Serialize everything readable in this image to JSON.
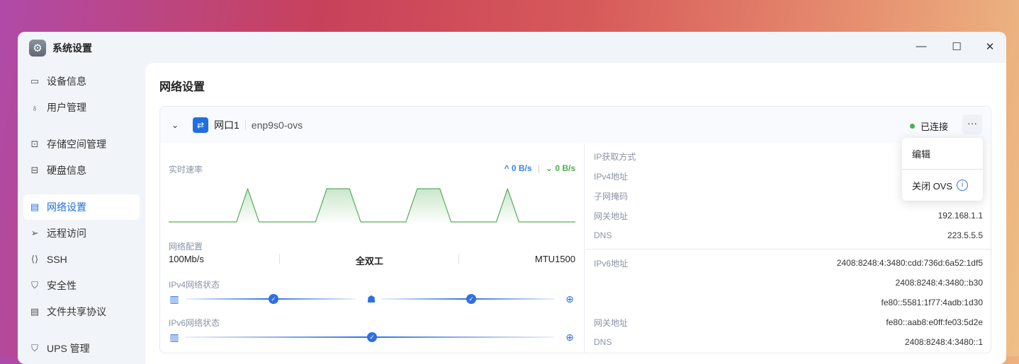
{
  "window": {
    "title": "系统设置",
    "controls": [
      "minimize",
      "maximize",
      "close"
    ]
  },
  "sidebar": {
    "items": [
      {
        "label": "设备信息",
        "icon": "device-icon"
      },
      {
        "label": "用户管理",
        "icon": "user-gear-icon"
      },
      {
        "label": "存储空间管理",
        "icon": "storage-icon"
      },
      {
        "label": "硬盘信息",
        "icon": "disk-icon"
      },
      {
        "label": "网络设置",
        "icon": "network-icon",
        "active": true
      },
      {
        "label": "远程访问",
        "icon": "send-icon"
      },
      {
        "label": "SSH",
        "icon": "code-icon"
      },
      {
        "label": "安全性",
        "icon": "shield-check-icon"
      },
      {
        "label": "文件共享协议",
        "icon": "file-icon"
      },
      {
        "label": "UPS 管理",
        "icon": "shield-icon"
      }
    ]
  },
  "main": {
    "title": "网络设置",
    "port": {
      "name": "网口1",
      "device": "enp9s0-ovs",
      "status": "已连接",
      "status_color": "#4caf50",
      "speed_label": "实时速率",
      "upload": "0 B/s",
      "download": "0 B/s",
      "traffic": [
        0,
        0,
        0,
        0,
        0,
        0,
        0,
        1,
        0,
        0,
        0,
        0,
        0,
        0,
        1,
        1,
        1,
        0,
        0,
        0,
        0,
        0,
        1,
        1,
        1,
        0,
        0,
        0,
        0,
        0,
        1,
        0,
        0,
        0,
        0,
        0,
        0
      ],
      "config_label": "网络配置",
      "link_speed": "100Mb/s",
      "duplex": "全双工",
      "mtu": "MTU1500",
      "ipv4_status_label": "IPv4网络状态",
      "ipv6_status_label": "IPv6网络状态",
      "ipv4": [
        {
          "k": "IP获取方式",
          "v": ""
        },
        {
          "k": "IPv4地址",
          "v": ""
        },
        {
          "k": "子网掩码",
          "v": ""
        },
        {
          "k": "网关地址",
          "v": "192.168.1.1"
        },
        {
          "k": "DNS",
          "v": "223.5.5.5"
        }
      ],
      "ipv6": [
        {
          "k": "IPv6地址",
          "v": "2408:8248:4:3480:cdd:736d:6a52:1df5"
        },
        {
          "k": "",
          "v": "2408:8248:4:3480::b30"
        },
        {
          "k": "",
          "v": "fe80::5581:1f77:4adb:1d30"
        },
        {
          "k": "网关地址",
          "v": "fe80::aab8:e0ff:fe03:5d2e"
        },
        {
          "k": "DNS",
          "v": "2408:8248:4:3480::1"
        }
      ]
    },
    "menu": {
      "edit": "编辑",
      "close_ovs": "关闭 OVS"
    }
  },
  "colors": {
    "accent": "#1f6fe0",
    "upload": "#3b82e6",
    "download": "#4caf50"
  }
}
